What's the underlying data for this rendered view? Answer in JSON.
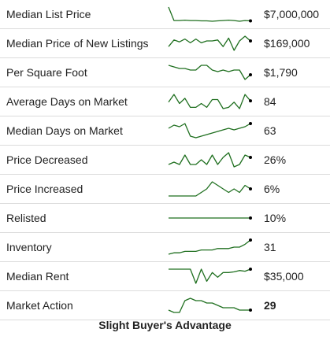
{
  "metrics": [
    {
      "label": "Median List Price",
      "value": "$7,000,000",
      "trend": [
        22,
        4,
        4,
        4.5,
        4,
        4,
        3.5,
        3.5,
        3,
        3.5,
        4,
        4.5,
        4,
        3,
        4,
        3.5
      ]
    },
    {
      "label": "Median Price of New Listings",
      "value": "$169,000",
      "trend": [
        5,
        12,
        10,
        13,
        9,
        13,
        9,
        11,
        11,
        12,
        5,
        14,
        1,
        11,
        16,
        11
      ]
    },
    {
      "label": "Per Square Foot",
      "value": "$1,790",
      "trend": [
        15,
        14,
        13,
        13,
        12,
        12,
        15,
        15,
        12,
        11,
        12,
        11,
        12,
        12,
        6,
        9
      ]
    },
    {
      "label": "Average Days on Market",
      "value": "84",
      "trend": [
        10,
        16,
        9,
        13,
        6,
        6,
        9,
        6,
        12,
        12,
        5,
        6,
        10,
        5,
        16,
        11
      ]
    },
    {
      "label": "Median Days on Market",
      "value": "63",
      "trend": [
        9,
        11,
        10,
        12,
        4,
        3,
        4,
        5,
        6,
        7,
        8,
        9,
        8,
        9,
        10,
        12
      ]
    },
    {
      "label": "Price Decreased",
      "value": "26%",
      "trend": [
        10,
        11,
        10,
        14,
        10,
        10,
        12,
        10,
        14,
        10,
        13,
        15,
        9,
        10,
        14,
        13
      ]
    },
    {
      "label": "Price Increased",
      "value": "6%",
      "trend": [
        10,
        10,
        10,
        10,
        10,
        10,
        11,
        12,
        14,
        13,
        12,
        11,
        12,
        11,
        13,
        12
      ]
    },
    {
      "label": "Relisted",
      "value": "10%",
      "trend": [
        5,
        5,
        5,
        5,
        5,
        5,
        5,
        5,
        5,
        5,
        5,
        5,
        5,
        5,
        5,
        5
      ]
    },
    {
      "label": "Inventory",
      "value": "31",
      "trend": [
        7,
        8,
        8,
        9,
        9,
        9,
        10,
        10,
        10,
        11,
        11,
        11,
        12,
        12,
        14,
        17
      ]
    },
    {
      "label": "Median Rent",
      "value": "$35,000",
      "trend": [
        48,
        48,
        48,
        48,
        48,
        27,
        48,
        30,
        43,
        36,
        43,
        43,
        44,
        46,
        45,
        48
      ]
    },
    {
      "label": "Market Action",
      "value": "29",
      "value_bold": true,
      "trend": [
        29,
        28,
        28,
        33,
        34,
        33,
        33,
        32,
        32,
        31,
        30,
        30,
        30,
        29,
        29,
        29
      ]
    }
  ],
  "market_condition": "Slight Buyer's Advantage",
  "colors": {
    "sparkline": "#1f6f1f",
    "marker": "#000000",
    "divider": "#dcdcdc",
    "text": "#222222"
  }
}
